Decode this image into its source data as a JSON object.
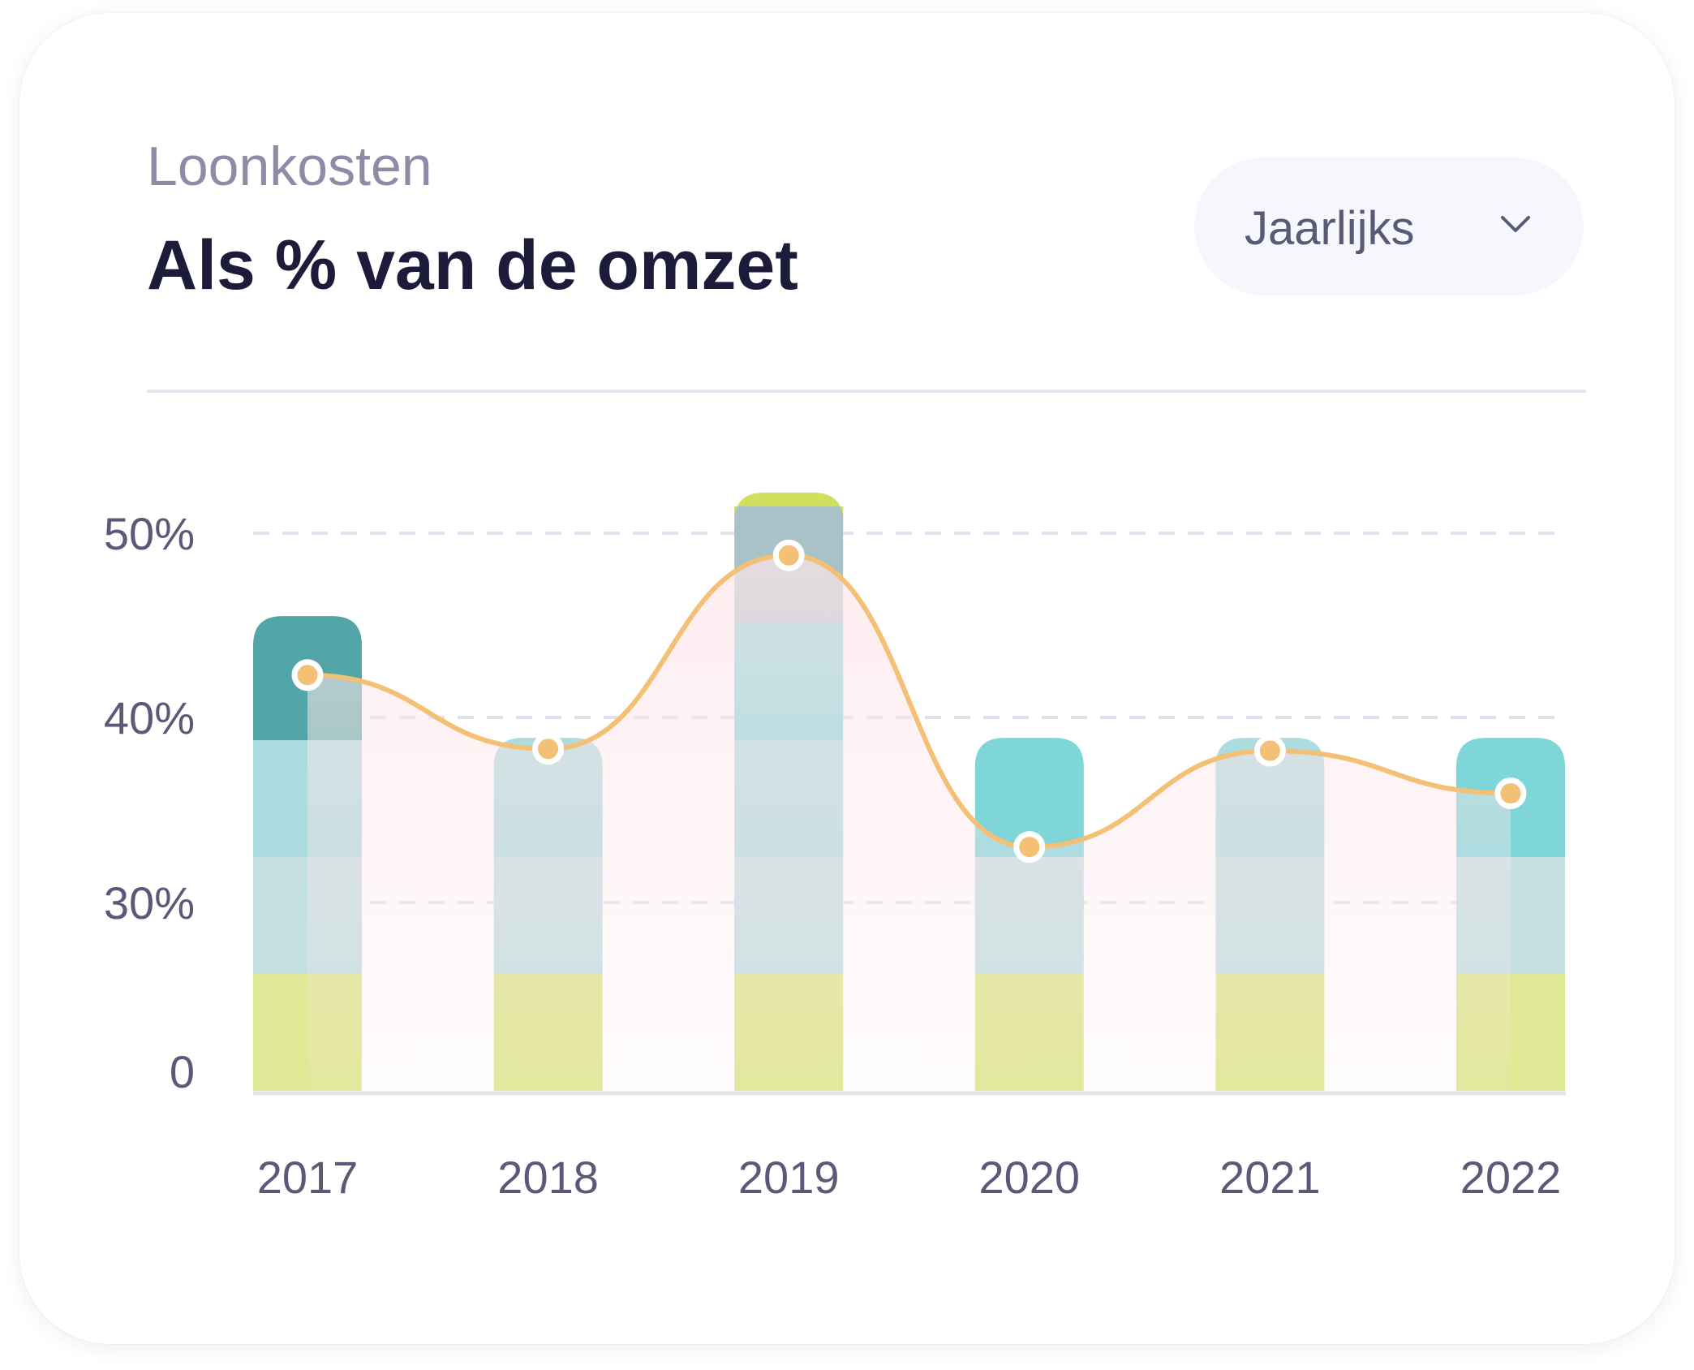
{
  "header": {
    "subtitle": "Loonkosten",
    "title": "Als % van de omzet"
  },
  "dropdown": {
    "selected": "Jaarlijks",
    "icon": "chevron-down-icon"
  },
  "chart_data": {
    "type": "bar",
    "title": "Als % van de omzet",
    "categories": [
      "2017",
      "2018",
      "2019",
      "2020",
      "2021",
      "2022"
    ],
    "y_ticks": [
      {
        "value": 0,
        "label": "0"
      },
      {
        "value": 30,
        "label": "30%"
      },
      {
        "value": 40,
        "label": "40%"
      },
      {
        "value": 50,
        "label": "50%"
      }
    ],
    "grid": "dashed horizontal",
    "stack_bands": [
      {
        "level": 1,
        "color": "#dfe894"
      },
      {
        "level": 2,
        "color": "#c4e0e2"
      },
      {
        "level": 3,
        "color": "#acdcdf"
      },
      {
        "level": 4,
        "color": "#7ed6d9"
      },
      {
        "level": 5,
        "color": "#a8c2c8"
      },
      {
        "level": 6,
        "color": "#d1df5f"
      }
    ],
    "bar_levels": [
      4,
      3,
      6,
      3,
      3,
      3
    ],
    "bar_values": [
      45.5,
      38.9,
      52.2,
      38.9,
      38.9,
      38.9
    ],
    "bar_top_colors": [
      "#52a6a7",
      "#acdcdf",
      "#d1df5f",
      "#7ed6d9",
      "#acdcdf",
      "#7ed6d9"
    ],
    "line": {
      "color": "#f3c076",
      "values": [
        42.3,
        38.3,
        48.8,
        33.0,
        38.2,
        35.9
      ]
    }
  }
}
